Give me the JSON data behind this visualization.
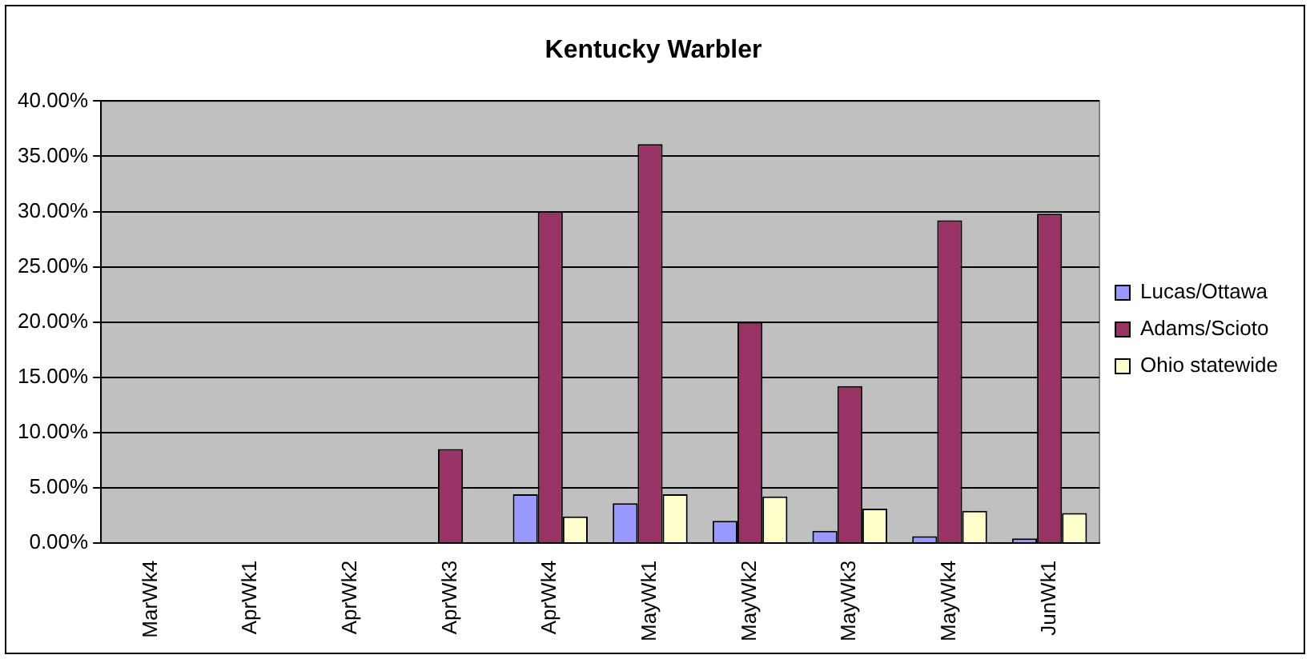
{
  "chart_data": {
    "type": "bar",
    "title": "Kentucky Warbler",
    "categories": [
      "MarWk4",
      "AprWk1",
      "AprWk2",
      "AprWk3",
      "AprWk4",
      "MayWk1",
      "MayWk2",
      "MayWk3",
      "MayWk4",
      "JunWk1"
    ],
    "series": [
      {
        "name": "Lucas/Ottawa",
        "color": "#9999ff",
        "values": [
          0,
          0,
          0,
          0,
          4.4,
          3.6,
          2.0,
          1.1,
          0.6,
          0.4
        ]
      },
      {
        "name": "Adams/Scioto",
        "color": "#993366",
        "values": [
          0,
          0,
          0,
          8.5,
          30,
          36.1,
          20.0,
          14.2,
          29.2,
          29.8
        ]
      },
      {
        "name": "Ohio statewide",
        "color": "#ffffcc",
        "values": [
          0,
          0,
          0,
          0,
          2.4,
          4.4,
          4.2,
          3.1,
          2.9,
          2.7
        ]
      }
    ],
    "ylim": [
      0,
      40
    ],
    "yticks": [
      {
        "value": 0,
        "label": "0.00%"
      },
      {
        "value": 5,
        "label": "5.00%"
      },
      {
        "value": 10,
        "label": "10.00%"
      },
      {
        "value": 15,
        "label": "15.00%"
      },
      {
        "value": 20,
        "label": "20.00%"
      },
      {
        "value": 25,
        "label": "25.00%"
      },
      {
        "value": 30,
        "label": "30.00%"
      },
      {
        "value": 35,
        "label": "35.00%"
      },
      {
        "value": 40,
        "label": "40.00%"
      }
    ],
    "grid": "y",
    "legend": "right"
  }
}
